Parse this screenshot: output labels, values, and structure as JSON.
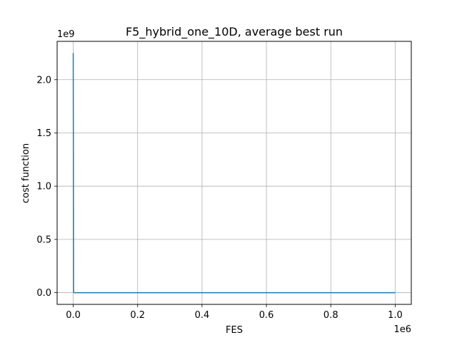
{
  "chart_data": {
    "type": "line",
    "title": "F5_hybrid_one_10D, average best run",
    "xlabel": "FES",
    "ylabel": "cost function",
    "x_offset_label": "1e6",
    "y_offset_label": "1e9",
    "xlim": [
      -50000,
      1050000
    ],
    "ylim": [
      -110000000,
      2360000000
    ],
    "grid": true,
    "line_color": "#1f77b4",
    "x_ticks": [
      {
        "value": 0,
        "label": "0.0"
      },
      {
        "value": 200000,
        "label": "0.2"
      },
      {
        "value": 400000,
        "label": "0.4"
      },
      {
        "value": 600000,
        "label": "0.6"
      },
      {
        "value": 800000,
        "label": "0.8"
      },
      {
        "value": 1000000,
        "label": "1.0"
      }
    ],
    "y_ticks": [
      {
        "value": 0,
        "label": "0.0"
      },
      {
        "value": 500000000,
        "label": "0.5"
      },
      {
        "value": 1000000000,
        "label": "1.0"
      },
      {
        "value": 1500000000,
        "label": "1.5"
      },
      {
        "value": 2000000000,
        "label": "2.0"
      }
    ],
    "series": [
      {
        "x": [
          0,
          1000,
          2000,
          5000,
          10000,
          100000,
          500000,
          1000000
        ],
        "y": [
          2250000000,
          5000000,
          100000,
          5000,
          1000,
          200,
          100,
          50
        ]
      }
    ]
  }
}
